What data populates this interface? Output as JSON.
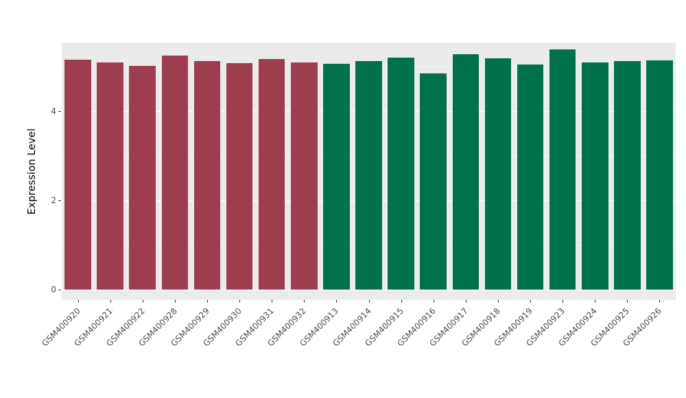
{
  "chart_data": {
    "type": "bar",
    "title": "",
    "xlabel": "",
    "ylabel": "Expression Level",
    "ylim": [
      0,
      5.54
    ],
    "yticks": [
      0,
      2,
      4
    ],
    "minor_ticks": [
      1,
      3,
      5
    ],
    "grid": "on",
    "legend": "none",
    "categories": [
      "GSM400920",
      "GSM400921",
      "GSM400922",
      "GSM400928",
      "GSM400929",
      "GSM400930",
      "GSM400931",
      "GSM400932",
      "GSM400913",
      "GSM400914",
      "GSM400915",
      "GSM400916",
      "GSM400917",
      "GSM400918",
      "GSM400919",
      "GSM400923",
      "GSM400924",
      "GSM400925",
      "GSM400926"
    ],
    "values": [
      5.15,
      5.1,
      5.02,
      5.25,
      5.13,
      5.08,
      5.17,
      5.1,
      5.06,
      5.13,
      5.2,
      4.85,
      5.27,
      5.18,
      5.05,
      5.38,
      5.1,
      5.13,
      5.14
    ],
    "groups": [
      "red",
      "red",
      "red",
      "red",
      "red",
      "red",
      "red",
      "red",
      "green",
      "green",
      "green",
      "green",
      "green",
      "green",
      "green",
      "green",
      "green",
      "green",
      "green"
    ],
    "colors": {
      "red": "#9E3D4F",
      "green": "#00714C"
    },
    "style": {
      "panel_bg": "#EBEBEB",
      "grid_color": "#FFFFFF",
      "axis_text_color": "#4D4D4D"
    }
  }
}
